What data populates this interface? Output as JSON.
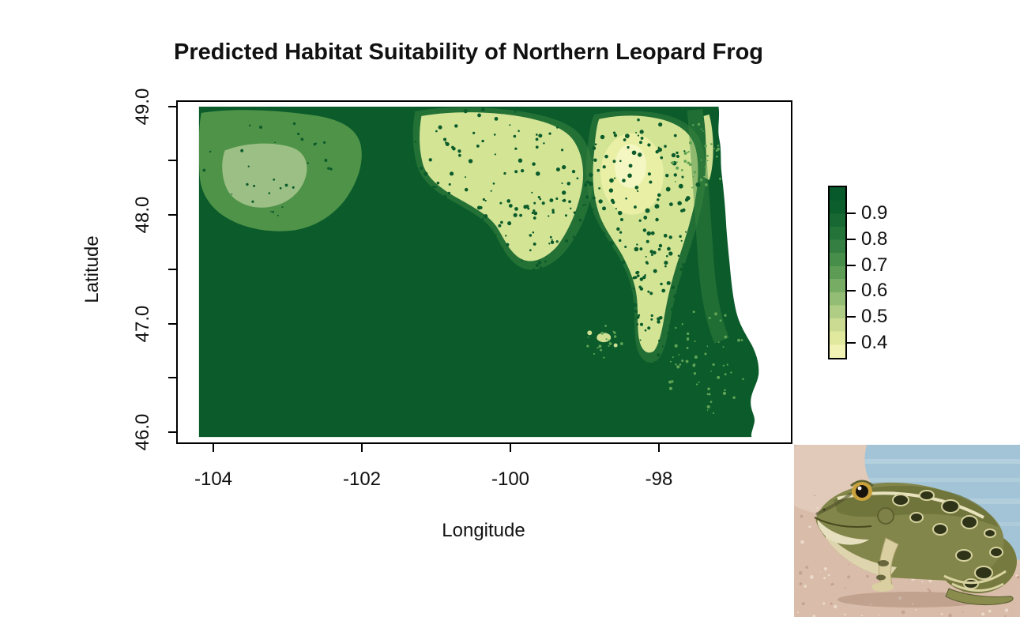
{
  "title": "Predicted Habitat Suitability of Northern Leopard Frog",
  "axes": {
    "x": {
      "label": "Longitude",
      "ticks": [
        "-104",
        "-102",
        "-100",
        "-98"
      ]
    },
    "y": {
      "label": "Latitude",
      "ticks": [
        "49.0",
        "48.0",
        "47.0",
        "46.0"
      ]
    }
  },
  "legend": {
    "tick_labels": [
      "0.9",
      "0.8",
      "0.7",
      "0.6",
      "0.5",
      "0.4"
    ],
    "gradient_colors": [
      "#07582a",
      "#0d5e2d",
      "#176832",
      "#24743a",
      "#347f41",
      "#478e4b",
      "#5d9c55",
      "#76ac63",
      "#93bd74",
      "#b0cd85",
      "#cbdc92",
      "#e0e99e",
      "#f0f3b4"
    ]
  },
  "palette": {
    "background": "#ffffff",
    "axis_color": "#111111",
    "map_high": "#0b5b2b",
    "map_mid": "#4e9348",
    "map_mid_halo": "#3a8440",
    "map_midlight": "#9cbf85",
    "map_low": "#d4e495",
    "map_verylow": "#e9f0a6",
    "map_lowest": "#f4f7c2",
    "map_sliver": "#cfe093",
    "speckle_dark": "#0b5b2b",
    "speckle_light": "#5fa355"
  },
  "photo": {
    "description": "Northern leopard frog sitting on a pink-tan rock in front of blue water"
  },
  "chart_data": {
    "type": "heatmap",
    "title": "Predicted Habitat Suitability of Northern Leopard Frog",
    "xlabel": "Longitude",
    "ylabel": "Latitude",
    "xlim": [
      -104.6,
      -96.2
    ],
    "ylim": [
      45.9,
      49.05
    ],
    "x_ticks": [
      -104,
      -102,
      -100,
      -98
    ],
    "y_major_ticks": [
      49.0,
      48.0,
      47.0,
      46.0
    ],
    "y_minor_ticks": [
      48.5,
      47.5,
      46.5
    ],
    "region_shape": "State of North Dakota raster mask",
    "colorbar": {
      "labeled_values": [
        0.9,
        0.8,
        0.7,
        0.6,
        0.5,
        0.4
      ],
      "value_min": 0.35,
      "value_max": 1.0,
      "scale": "pale yellow = low suitability, dark green = high suitability",
      "position": "right"
    },
    "grid": false,
    "regions": [
      {
        "name": "statewide baseline (south and west)",
        "approx_value": 0.95,
        "note": "solid dark green across most of the state"
      },
      {
        "name": "northwest upland patch",
        "center_lon": -103.3,
        "center_lat": 48.3,
        "approx_value": 0.7
      },
      {
        "name": "north-central basin",
        "center_lon": -100.0,
        "center_lat": 48.5,
        "approx_value": 0.45,
        "note": "pale patch speckled with dark dots"
      },
      {
        "name": "northeast basin bright core",
        "center_lon": -98.4,
        "center_lat": 48.4,
        "approx_value": 0.38
      },
      {
        "name": "eastern speckled corridor",
        "center_lon": -97.9,
        "center_lat": 47.2,
        "approx_value": 0.55
      },
      {
        "name": "northeast edge sliver",
        "center_lon": -96.8,
        "center_lat": 48.8,
        "approx_value": 0.5
      }
    ]
  }
}
